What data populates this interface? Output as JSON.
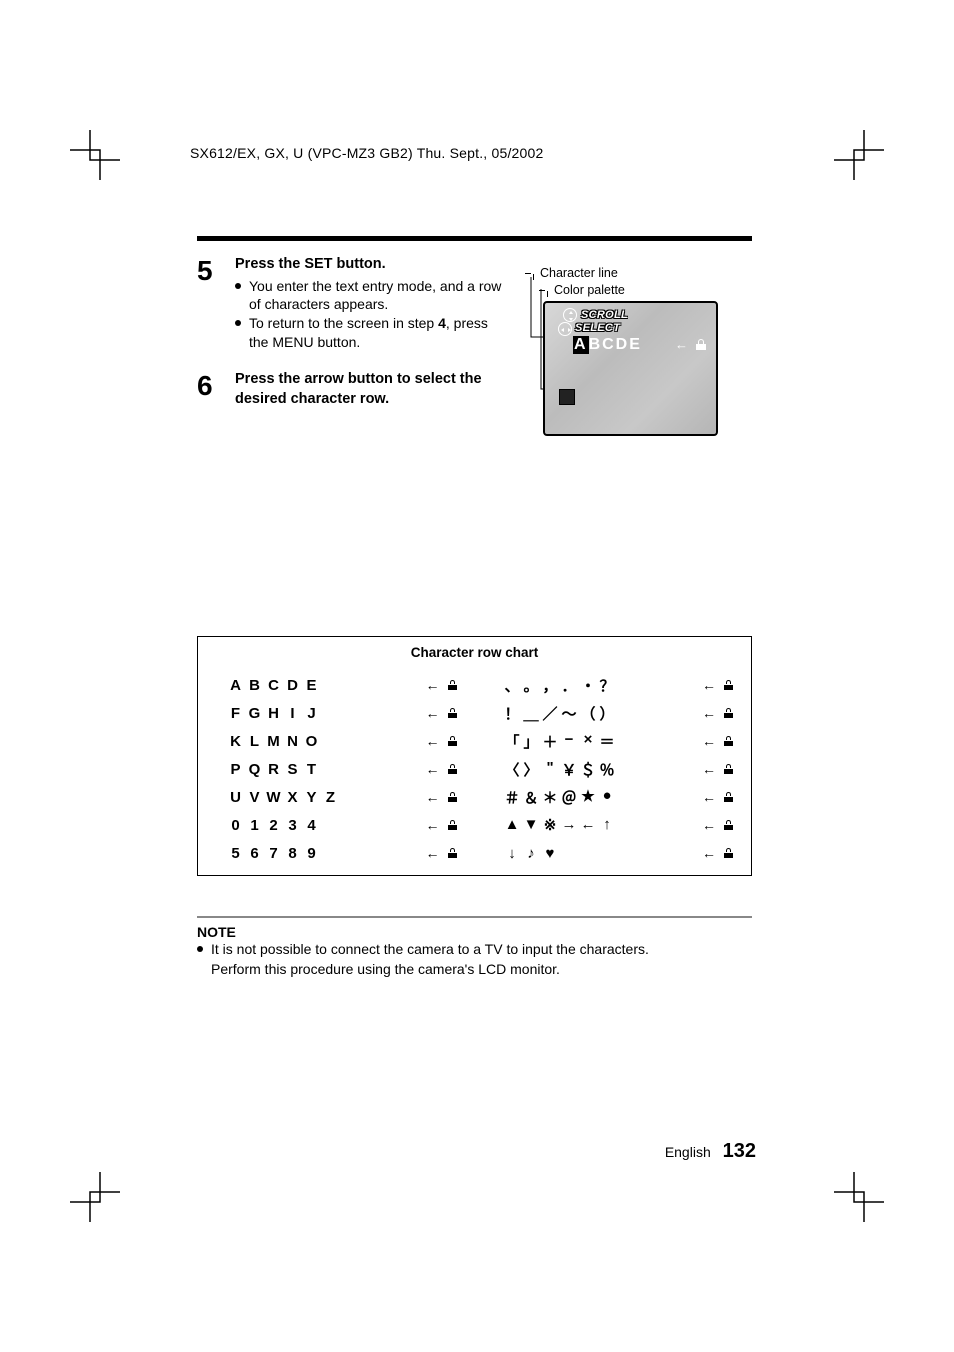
{
  "header": "SX612/EX, GX, U (VPC-MZ3 GB2)   Thu. Sept., 05/2002",
  "steps": [
    {
      "num": "5",
      "title": "Press the SET button.",
      "bullets": [
        "You enter the text entry mode, and a row of characters appears.",
        "To return to the screen in step 4, press the MENU button."
      ]
    },
    {
      "num": "6",
      "title": "Press the arrow button to select the desired character row.",
      "bullets": []
    }
  ],
  "callouts": {
    "line1": "Character line",
    "line2": "Color palette"
  },
  "lcd": {
    "scroll": "SCROLL",
    "select": "SELECT",
    "highlighted": "A",
    "rest": "BCDE",
    "arrow": "←"
  },
  "chart": {
    "title": "Character row chart",
    "left_rows": [
      [
        "A",
        "B",
        "C",
        "D",
        "E",
        "",
        ""
      ],
      [
        "F",
        "G",
        "H",
        "I",
        "J",
        "",
        ""
      ],
      [
        "K",
        "L",
        "M",
        "N",
        "O",
        "",
        ""
      ],
      [
        "P",
        "Q",
        "R",
        "S",
        "T",
        "",
        ""
      ],
      [
        "U",
        "V",
        "W",
        "X",
        "Y",
        "Z",
        ""
      ],
      [
        "0",
        "1",
        "2",
        "3",
        "4",
        "",
        ""
      ],
      [
        "5",
        "6",
        "7",
        "8",
        "9",
        "",
        ""
      ]
    ],
    "right_rows": [
      [
        "、",
        "。",
        "，",
        "．",
        "・",
        "？",
        ""
      ],
      [
        "！",
        "＿",
        "／",
        "〜",
        "（",
        "）",
        ""
      ],
      [
        "「",
        "」",
        "＋",
        "−",
        "×",
        "＝",
        ""
      ],
      [
        "〈",
        "〉",
        "\"",
        "￥",
        "＄",
        "％",
        ""
      ],
      [
        "＃",
        "＆",
        "＊",
        "＠",
        "★",
        "●",
        ""
      ],
      [
        "▲",
        "▼",
        "※",
        "→",
        "←",
        "↑",
        ""
      ],
      [
        "↓",
        "♪",
        "♥",
        "",
        "",
        "",
        ""
      ]
    ],
    "end_arrow": "←"
  },
  "note": {
    "title": "NOTE",
    "bullet": "It is not possible to connect the camera to a TV to input the characters.",
    "cont": "Perform this procedure using the camera's LCD monitor."
  },
  "footer": {
    "lang": "English",
    "page": "132"
  },
  "colors": {
    "rule_gray": "#888888"
  }
}
